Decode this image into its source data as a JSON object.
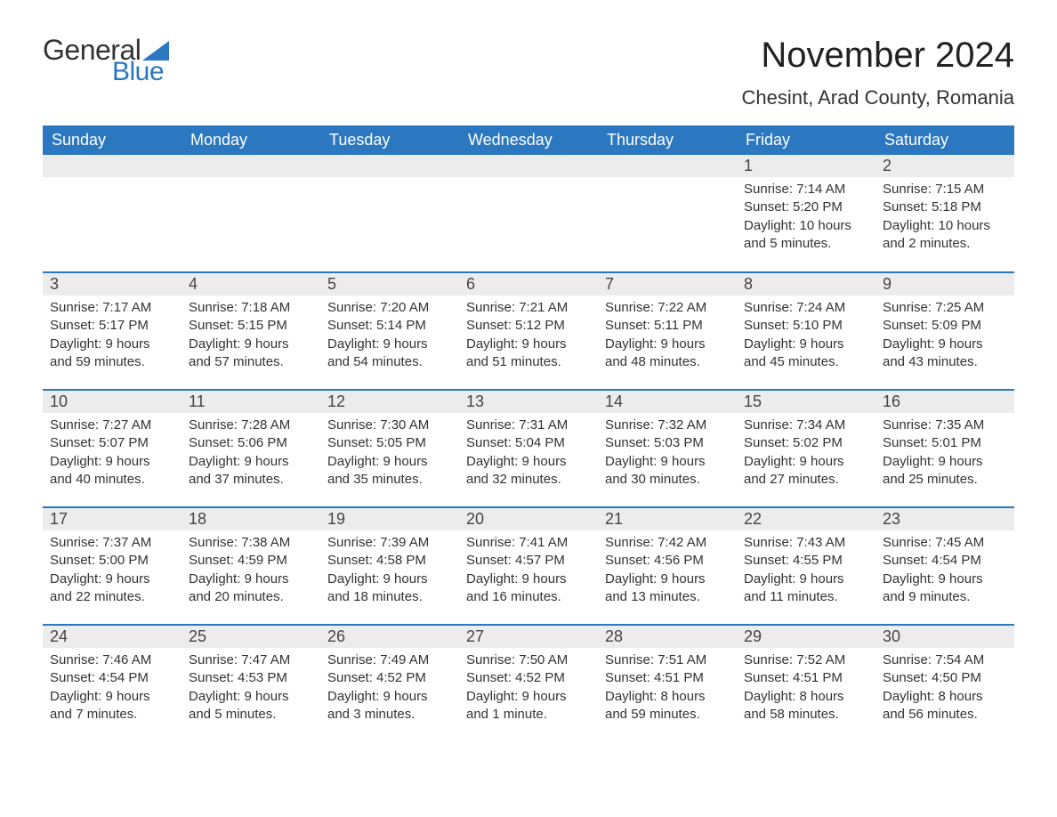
{
  "brand": {
    "general": "General",
    "blue": "Blue",
    "general_color": "#333333",
    "blue_color": "#2b77c0",
    "icon_color": "#2b77c0"
  },
  "title": "November 2024",
  "location": "Chesint, Arad County, Romania",
  "colors": {
    "header_bg": "#2b77c0",
    "header_text": "#ffffff",
    "daynum_bg": "#ececec",
    "row_border": "#2b77c0",
    "body_text": "#333333",
    "background": "#ffffff"
  },
  "weekdays": [
    "Sunday",
    "Monday",
    "Tuesday",
    "Wednesday",
    "Thursday",
    "Friday",
    "Saturday"
  ],
  "weeks": [
    [
      {
        "empty": true
      },
      {
        "empty": true
      },
      {
        "empty": true
      },
      {
        "empty": true
      },
      {
        "empty": true
      },
      {
        "day": "1",
        "sunrise": "Sunrise: 7:14 AM",
        "sunset": "Sunset: 5:20 PM",
        "daylight": "Daylight: 10 hours and 5 minutes."
      },
      {
        "day": "2",
        "sunrise": "Sunrise: 7:15 AM",
        "sunset": "Sunset: 5:18 PM",
        "daylight": "Daylight: 10 hours and 2 minutes."
      }
    ],
    [
      {
        "day": "3",
        "sunrise": "Sunrise: 7:17 AM",
        "sunset": "Sunset: 5:17 PM",
        "daylight": "Daylight: 9 hours and 59 minutes."
      },
      {
        "day": "4",
        "sunrise": "Sunrise: 7:18 AM",
        "sunset": "Sunset: 5:15 PM",
        "daylight": "Daylight: 9 hours and 57 minutes."
      },
      {
        "day": "5",
        "sunrise": "Sunrise: 7:20 AM",
        "sunset": "Sunset: 5:14 PM",
        "daylight": "Daylight: 9 hours and 54 minutes."
      },
      {
        "day": "6",
        "sunrise": "Sunrise: 7:21 AM",
        "sunset": "Sunset: 5:12 PM",
        "daylight": "Daylight: 9 hours and 51 minutes."
      },
      {
        "day": "7",
        "sunrise": "Sunrise: 7:22 AM",
        "sunset": "Sunset: 5:11 PM",
        "daylight": "Daylight: 9 hours and 48 minutes."
      },
      {
        "day": "8",
        "sunrise": "Sunrise: 7:24 AM",
        "sunset": "Sunset: 5:10 PM",
        "daylight": "Daylight: 9 hours and 45 minutes."
      },
      {
        "day": "9",
        "sunrise": "Sunrise: 7:25 AM",
        "sunset": "Sunset: 5:09 PM",
        "daylight": "Daylight: 9 hours and 43 minutes."
      }
    ],
    [
      {
        "day": "10",
        "sunrise": "Sunrise: 7:27 AM",
        "sunset": "Sunset: 5:07 PM",
        "daylight": "Daylight: 9 hours and 40 minutes."
      },
      {
        "day": "11",
        "sunrise": "Sunrise: 7:28 AM",
        "sunset": "Sunset: 5:06 PM",
        "daylight": "Daylight: 9 hours and 37 minutes."
      },
      {
        "day": "12",
        "sunrise": "Sunrise: 7:30 AM",
        "sunset": "Sunset: 5:05 PM",
        "daylight": "Daylight: 9 hours and 35 minutes."
      },
      {
        "day": "13",
        "sunrise": "Sunrise: 7:31 AM",
        "sunset": "Sunset: 5:04 PM",
        "daylight": "Daylight: 9 hours and 32 minutes."
      },
      {
        "day": "14",
        "sunrise": "Sunrise: 7:32 AM",
        "sunset": "Sunset: 5:03 PM",
        "daylight": "Daylight: 9 hours and 30 minutes."
      },
      {
        "day": "15",
        "sunrise": "Sunrise: 7:34 AM",
        "sunset": "Sunset: 5:02 PM",
        "daylight": "Daylight: 9 hours and 27 minutes."
      },
      {
        "day": "16",
        "sunrise": "Sunrise: 7:35 AM",
        "sunset": "Sunset: 5:01 PM",
        "daylight": "Daylight: 9 hours and 25 minutes."
      }
    ],
    [
      {
        "day": "17",
        "sunrise": "Sunrise: 7:37 AM",
        "sunset": "Sunset: 5:00 PM",
        "daylight": "Daylight: 9 hours and 22 minutes."
      },
      {
        "day": "18",
        "sunrise": "Sunrise: 7:38 AM",
        "sunset": "Sunset: 4:59 PM",
        "daylight": "Daylight: 9 hours and 20 minutes."
      },
      {
        "day": "19",
        "sunrise": "Sunrise: 7:39 AM",
        "sunset": "Sunset: 4:58 PM",
        "daylight": "Daylight: 9 hours and 18 minutes."
      },
      {
        "day": "20",
        "sunrise": "Sunrise: 7:41 AM",
        "sunset": "Sunset: 4:57 PM",
        "daylight": "Daylight: 9 hours and 16 minutes."
      },
      {
        "day": "21",
        "sunrise": "Sunrise: 7:42 AM",
        "sunset": "Sunset: 4:56 PM",
        "daylight": "Daylight: 9 hours and 13 minutes."
      },
      {
        "day": "22",
        "sunrise": "Sunrise: 7:43 AM",
        "sunset": "Sunset: 4:55 PM",
        "daylight": "Daylight: 9 hours and 11 minutes."
      },
      {
        "day": "23",
        "sunrise": "Sunrise: 7:45 AM",
        "sunset": "Sunset: 4:54 PM",
        "daylight": "Daylight: 9 hours and 9 minutes."
      }
    ],
    [
      {
        "day": "24",
        "sunrise": "Sunrise: 7:46 AM",
        "sunset": "Sunset: 4:54 PM",
        "daylight": "Daylight: 9 hours and 7 minutes."
      },
      {
        "day": "25",
        "sunrise": "Sunrise: 7:47 AM",
        "sunset": "Sunset: 4:53 PM",
        "daylight": "Daylight: 9 hours and 5 minutes."
      },
      {
        "day": "26",
        "sunrise": "Sunrise: 7:49 AM",
        "sunset": "Sunset: 4:52 PM",
        "daylight": "Daylight: 9 hours and 3 minutes."
      },
      {
        "day": "27",
        "sunrise": "Sunrise: 7:50 AM",
        "sunset": "Sunset: 4:52 PM",
        "daylight": "Daylight: 9 hours and 1 minute."
      },
      {
        "day": "28",
        "sunrise": "Sunrise: 7:51 AM",
        "sunset": "Sunset: 4:51 PM",
        "daylight": "Daylight: 8 hours and 59 minutes."
      },
      {
        "day": "29",
        "sunrise": "Sunrise: 7:52 AM",
        "sunset": "Sunset: 4:51 PM",
        "daylight": "Daylight: 8 hours and 58 minutes."
      },
      {
        "day": "30",
        "sunrise": "Sunrise: 7:54 AM",
        "sunset": "Sunset: 4:50 PM",
        "daylight": "Daylight: 8 hours and 56 minutes."
      }
    ]
  ]
}
